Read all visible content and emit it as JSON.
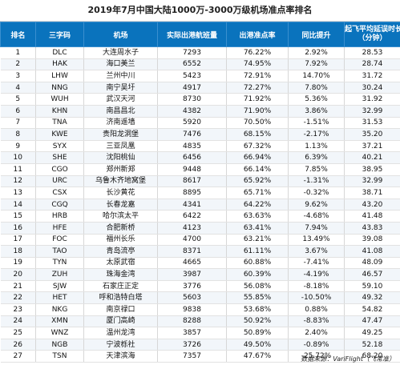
{
  "title": "2019年7月中国大陆1000万-3000万级机场准点率排名",
  "headers": {
    "rank": "排名",
    "code": "三字码",
    "airport": "机场",
    "departures": "实际出港航班量",
    "on_time": "出港准点率",
    "change": "同比提升",
    "delay_line1": "起飞平均延误时长",
    "delay_line2": "（分钟）"
  },
  "rows": [
    {
      "rank": "1",
      "code": "DLC",
      "airport": "大连周水子",
      "departures": "7293",
      "on_time": "76.22%",
      "change": "2.92%",
      "delay": "28.53"
    },
    {
      "rank": "2",
      "code": "HAK",
      "airport": "海口美兰",
      "departures": "6552",
      "on_time": "74.95%",
      "change": "7.92%",
      "delay": "28.74"
    },
    {
      "rank": "3",
      "code": "LHW",
      "airport": "兰州中川",
      "departures": "5423",
      "on_time": "72.91%",
      "change": "14.70%",
      "delay": "31.72"
    },
    {
      "rank": "4",
      "code": "NNG",
      "airport": "南宁吴圩",
      "departures": "4917",
      "on_time": "72.27%",
      "change": "7.80%",
      "delay": "30.24"
    },
    {
      "rank": "5",
      "code": "WUH",
      "airport": "武汉天河",
      "departures": "8730",
      "on_time": "71.92%",
      "change": "5.36%",
      "delay": "31.92"
    },
    {
      "rank": "6",
      "code": "KHN",
      "airport": "南昌昌北",
      "departures": "4382",
      "on_time": "71.90%",
      "change": "3.86%",
      "delay": "32.99"
    },
    {
      "rank": "7",
      "code": "TNA",
      "airport": "济南遥墙",
      "departures": "5920",
      "on_time": "70.50%",
      "change": "-1.51%",
      "delay": "31.53"
    },
    {
      "rank": "8",
      "code": "KWE",
      "airport": "贵阳龙洞堡",
      "departures": "7476",
      "on_time": "68.15%",
      "change": "-2.17%",
      "delay": "35.20"
    },
    {
      "rank": "9",
      "code": "SYX",
      "airport": "三亚凤凰",
      "departures": "4835",
      "on_time": "67.32%",
      "change": "1.13%",
      "delay": "37.21"
    },
    {
      "rank": "10",
      "code": "SHE",
      "airport": "沈阳桃仙",
      "departures": "6456",
      "on_time": "66.94%",
      "change": "6.39%",
      "delay": "40.21"
    },
    {
      "rank": "11",
      "code": "CGO",
      "airport": "郑州新郑",
      "departures": "9448",
      "on_time": "66.14%",
      "change": "7.85%",
      "delay": "38.95"
    },
    {
      "rank": "12",
      "code": "URC",
      "airport": "乌鲁木齐地窝堡",
      "departures": "8617",
      "on_time": "65.92%",
      "change": "-1.31%",
      "delay": "32.99"
    },
    {
      "rank": "13",
      "code": "CSX",
      "airport": "长沙黄花",
      "departures": "8895",
      "on_time": "65.71%",
      "change": "-0.32%",
      "delay": "38.71"
    },
    {
      "rank": "14",
      "code": "CGQ",
      "airport": "长春龙嘉",
      "departures": "4341",
      "on_time": "64.22%",
      "change": "9.62%",
      "delay": "43.20"
    },
    {
      "rank": "15",
      "code": "HRB",
      "airport": "哈尔滨太平",
      "departures": "6422",
      "on_time": "63.63%",
      "change": "-4.68%",
      "delay": "41.48"
    },
    {
      "rank": "16",
      "code": "HFE",
      "airport": "合肥新桥",
      "departures": "4123",
      "on_time": "63.41%",
      "change": "7.94%",
      "delay": "43.83"
    },
    {
      "rank": "17",
      "code": "FOC",
      "airport": "福州长乐",
      "departures": "4700",
      "on_time": "63.21%",
      "change": "13.49%",
      "delay": "39.08"
    },
    {
      "rank": "18",
      "code": "TAO",
      "airport": "青岛流亭",
      "departures": "8371",
      "on_time": "61.11%",
      "change": "3.67%",
      "delay": "41.08"
    },
    {
      "rank": "19",
      "code": "TYN",
      "airport": "太原武宿",
      "departures": "4665",
      "on_time": "60.88%",
      "change": "-7.41%",
      "delay": "48.09"
    },
    {
      "rank": "20",
      "code": "ZUH",
      "airport": "珠海金湾",
      "departures": "3987",
      "on_time": "60.39%",
      "change": "-4.19%",
      "delay": "46.57"
    },
    {
      "rank": "21",
      "code": "SJW",
      "airport": "石家庄正定",
      "departures": "3776",
      "on_time": "56.08%",
      "change": "-8.18%",
      "delay": "59.10"
    },
    {
      "rank": "22",
      "code": "HET",
      "airport": "呼和浩特白塔",
      "departures": "5603",
      "on_time": "55.85%",
      "change": "-10.50%",
      "delay": "49.32"
    },
    {
      "rank": "23",
      "code": "NKG",
      "airport": "南京禄口",
      "departures": "9838",
      "on_time": "53.68%",
      "change": "0.88%",
      "delay": "54.82"
    },
    {
      "rank": "24",
      "code": "XMN",
      "airport": "厦门高崎",
      "departures": "8288",
      "on_time": "50.92%",
      "change": "-8.83%",
      "delay": "47.47"
    },
    {
      "rank": "25",
      "code": "WNZ",
      "airport": "温州龙湾",
      "departures": "3857",
      "on_time": "50.89%",
      "change": "2.40%",
      "delay": "49.25"
    },
    {
      "rank": "26",
      "code": "NGB",
      "airport": "宁波栎社",
      "departures": "3726",
      "on_time": "49.50%",
      "change": "-0.89%",
      "delay": "52.18"
    },
    {
      "rank": "27",
      "code": "TSN",
      "airport": "天津滨海",
      "departures": "7357",
      "on_time": "47.67%",
      "change": "-25.72%",
      "delay": "68.20"
    }
  ],
  "footer": "数据来源：VariFlight（飞常准）"
}
